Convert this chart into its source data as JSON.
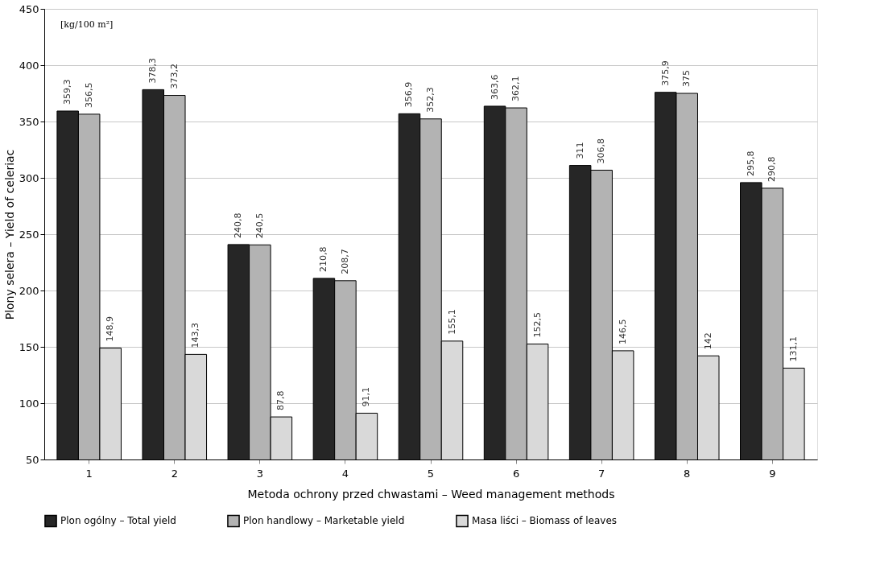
{
  "chart_data": {
    "type": "bar",
    "xlabel": "Metoda ochrony przed chwastami – Weed management methods",
    "ylabel": "Plony selera – Yield of celeriac",
    "annotations": [
      "[kg/100 m²]"
    ],
    "categories": [
      "1",
      "2",
      "3",
      "4",
      "5",
      "6",
      "7",
      "8",
      "9"
    ],
    "series": [
      {
        "name": "Plon ogólny – Total yield",
        "color": "#262626",
        "values": [
          359.3,
          378.3,
          240.8,
          210.8,
          356.9,
          363.6,
          311,
          375.9,
          295.8
        ],
        "value_labels": [
          "359,3",
          "378,3",
          "240,8",
          "210,8",
          "356,9",
          "363,6",
          "311",
          "375,9",
          "295,8"
        ]
      },
      {
        "name": "Plon handlowy – Marketable yield",
        "color": "#b3b3b3",
        "values": [
          356.5,
          373.2,
          240.5,
          208.7,
          352.3,
          362.1,
          306.8,
          375,
          290.8
        ],
        "value_labels": [
          "356,5",
          "373,2",
          "240,5",
          "208,7",
          "352,3",
          "362,1",
          "306,8",
          "375",
          "290,8"
        ]
      },
      {
        "name": "Masa liści – Biomass of leaves",
        "color": "#d9d9d9",
        "values": [
          148.9,
          143.3,
          87.8,
          91.1,
          155.1,
          152.5,
          146.5,
          142,
          131.1
        ],
        "value_labels": [
          "148,9",
          "143,3",
          "87,8",
          "91,1",
          "155,1",
          "152,5",
          "146,5",
          "142",
          "131,1"
        ]
      }
    ],
    "ylim": [
      50,
      450
    ],
    "yticks": [
      50,
      100,
      150,
      200,
      250,
      300,
      350,
      400,
      450
    ],
    "grid": "y",
    "legend": "bottom"
  }
}
